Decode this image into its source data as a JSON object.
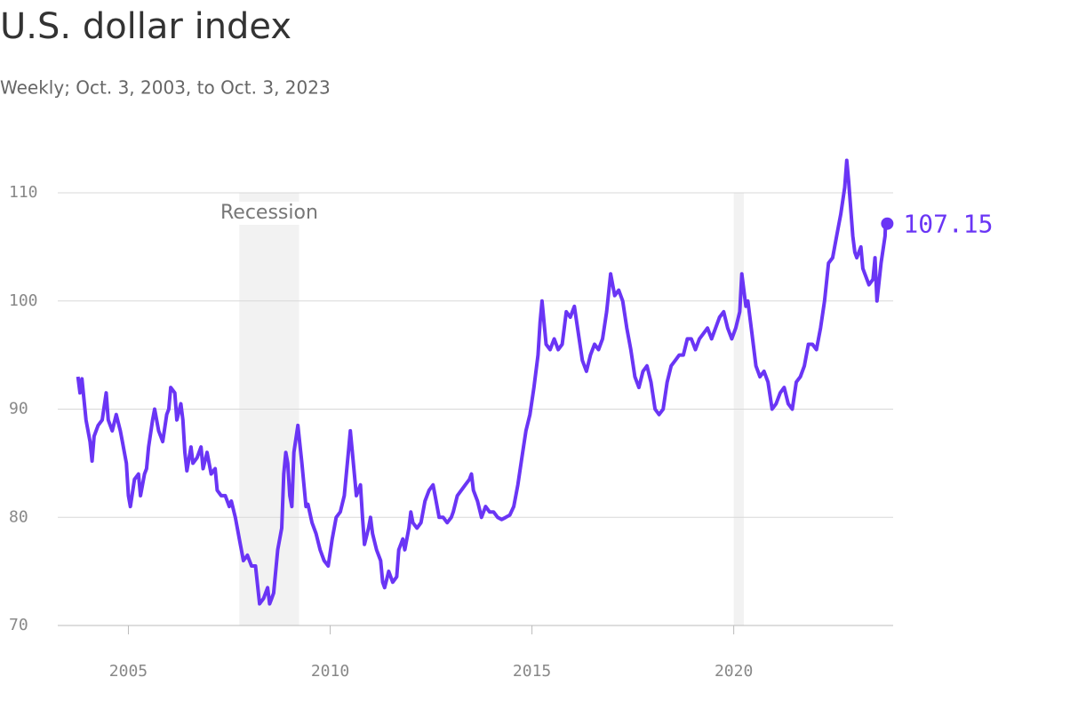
{
  "chart_data": {
    "type": "line",
    "title": "U.S. dollar index",
    "subtitle": "Weekly; Oct. 3, 2003, to Oct. 3, 2023",
    "recession_label": "Recession",
    "recessions": [
      [
        2007.75,
        2009.23
      ],
      [
        2020.0,
        2020.25
      ]
    ],
    "xlim": [
      2003.25,
      2023.95
    ],
    "ylim": [
      70,
      113
    ],
    "xticks": [
      2005,
      2010,
      2015,
      2020
    ],
    "yticks": [
      70,
      80,
      90,
      100,
      110
    ],
    "grid": true,
    "end_label": "107.15",
    "x": [
      2003.75,
      2003.8,
      2003.85,
      2003.95,
      2004.05,
      2004.1,
      2004.15,
      2004.25,
      2004.35,
      2004.45,
      2004.5,
      2004.6,
      2004.7,
      2004.8,
      2004.85,
      2004.95,
      2005.0,
      2005.05,
      2005.15,
      2005.25,
      2005.3,
      2005.4,
      2005.45,
      2005.5,
      2005.6,
      2005.65,
      2005.75,
      2005.85,
      2005.95,
      2006.0,
      2006.05,
      2006.15,
      2006.2,
      2006.3,
      2006.35,
      2006.4,
      2006.45,
      2006.55,
      2006.6,
      2006.7,
      2006.8,
      2006.85,
      2006.95,
      2007.0,
      2007.05,
      2007.15,
      2007.2,
      2007.3,
      2007.4,
      2007.5,
      2007.55,
      2007.65,
      2007.75,
      2007.85,
      2007.95,
      2008.05,
      2008.15,
      2008.25,
      2008.35,
      2008.45,
      2008.5,
      2008.55,
      2008.6,
      2008.7,
      2008.8,
      2008.85,
      2008.9,
      2008.95,
      2009.0,
      2009.05,
      2009.1,
      2009.2,
      2009.3,
      2009.4,
      2009.45,
      2009.55,
      2009.65,
      2009.75,
      2009.85,
      2009.95,
      2010.05,
      2010.15,
      2010.25,
      2010.35,
      2010.45,
      2010.5,
      2010.55,
      2010.65,
      2010.75,
      2010.8,
      2010.85,
      2010.95,
      2011.0,
      2011.05,
      2011.15,
      2011.25,
      2011.3,
      2011.35,
      2011.45,
      2011.55,
      2011.65,
      2011.7,
      2011.8,
      2011.85,
      2011.95,
      2012.0,
      2012.05,
      2012.15,
      2012.25,
      2012.35,
      2012.45,
      2012.55,
      2012.6,
      2012.7,
      2012.8,
      2012.9,
      2013.0,
      2013.05,
      2013.15,
      2013.25,
      2013.35,
      2013.45,
      2013.5,
      2013.55,
      2013.65,
      2013.75,
      2013.85,
      2013.95,
      2014.05,
      2014.15,
      2014.25,
      2014.35,
      2014.45,
      2014.55,
      2014.65,
      2014.75,
      2014.85,
      2014.95,
      2015.05,
      2015.15,
      2015.2,
      2015.25,
      2015.35,
      2015.45,
      2015.55,
      2015.65,
      2015.75,
      2015.85,
      2015.95,
      2016.05,
      2016.15,
      2016.25,
      2016.35,
      2016.45,
      2016.55,
      2016.65,
      2016.75,
      2016.85,
      2016.95,
      2017.05,
      2017.15,
      2017.25,
      2017.35,
      2017.45,
      2017.55,
      2017.65,
      2017.75,
      2017.85,
      2017.95,
      2018.05,
      2018.15,
      2018.25,
      2018.35,
      2018.45,
      2018.55,
      2018.65,
      2018.75,
      2018.85,
      2018.95,
      2019.05,
      2019.15,
      2019.25,
      2019.35,
      2019.45,
      2019.55,
      2019.65,
      2019.75,
      2019.85,
      2019.95,
      2020.05,
      2020.15,
      2020.2,
      2020.3,
      2020.35,
      2020.45,
      2020.55,
      2020.65,
      2020.75,
      2020.85,
      2020.95,
      2021.05,
      2021.15,
      2021.25,
      2021.35,
      2021.45,
      2021.55,
      2021.65,
      2021.75,
      2021.85,
      2021.95,
      2022.05,
      2022.15,
      2022.25,
      2022.35,
      2022.45,
      2022.55,
      2022.65,
      2022.75,
      2022.8,
      2022.85,
      2022.95,
      2023.0,
      2023.05,
      2023.15,
      2023.2,
      2023.3,
      2023.35,
      2023.45,
      2023.5,
      2023.55,
      2023.65,
      2023.75,
      2023.76
    ],
    "series": [
      {
        "name": "U.S. dollar index",
        "color": "#6a35f5",
        "values": [
          93,
          91.5,
          92.8,
          89,
          87,
          85.2,
          87.5,
          88.5,
          89,
          91.5,
          89,
          88,
          89.5,
          88,
          87,
          85,
          82,
          81,
          83.5,
          84,
          82,
          84,
          84.5,
          86.5,
          89,
          90,
          88,
          87,
          89.5,
          90,
          92,
          91.5,
          89,
          90.5,
          89,
          86,
          84.3,
          86.5,
          85,
          85.5,
          86.5,
          84.5,
          86,
          85,
          84,
          84.5,
          82.5,
          82,
          82,
          81,
          81.5,
          80,
          78,
          76,
          76.5,
          75.5,
          75.5,
          72,
          72.5,
          73.5,
          72,
          72.5,
          73,
          77,
          79,
          84,
          86,
          85,
          82,
          81,
          86,
          88.5,
          85,
          81,
          81.2,
          79.5,
          78.5,
          77,
          76,
          75.5,
          78,
          80,
          80.5,
          82,
          86,
          88,
          86,
          82,
          83,
          80,
          77.5,
          79,
          80,
          78.5,
          77,
          76,
          74,
          73.5,
          75,
          74,
          74.5,
          77,
          78,
          77,
          79,
          80.5,
          79.5,
          79,
          79.5,
          81.5,
          82.5,
          83,
          82,
          80,
          80,
          79.5,
          80,
          80.5,
          82,
          82.5,
          83,
          83.5,
          84,
          82.5,
          81.5,
          80,
          81,
          80.5,
          80.5,
          80,
          79.8,
          80,
          80.2,
          81,
          83,
          85.5,
          88,
          89.5,
          92,
          95,
          98,
          100,
          96,
          95.5,
          96.5,
          95.5,
          96,
          99,
          98.5,
          99.5,
          97,
          94.5,
          93.5,
          95,
          96,
          95.5,
          96.5,
          99,
          102.5,
          100.5,
          101,
          100,
          97.5,
          95.5,
          93,
          92,
          93.5,
          94,
          92.5,
          90,
          89.5,
          90,
          92.5,
          94,
          94.5,
          95,
          95,
          96.5,
          96.5,
          95.5,
          96.5,
          97,
          97.5,
          96.5,
          97.5,
          98.5,
          99,
          97.5,
          96.5,
          97.5,
          99,
          102.5,
          99.5,
          100,
          97,
          94,
          93,
          93.5,
          92.5,
          90,
          90.5,
          91.5,
          92,
          90.5,
          90,
          92.5,
          93,
          94,
          96,
          96,
          95.5,
          97.5,
          100,
          103.5,
          104,
          106,
          108,
          110.5,
          113,
          111,
          106,
          104.5,
          104,
          105,
          103,
          102,
          101.5,
          102,
          104,
          100,
          103.5,
          106,
          107.15
        ]
      }
    ]
  }
}
